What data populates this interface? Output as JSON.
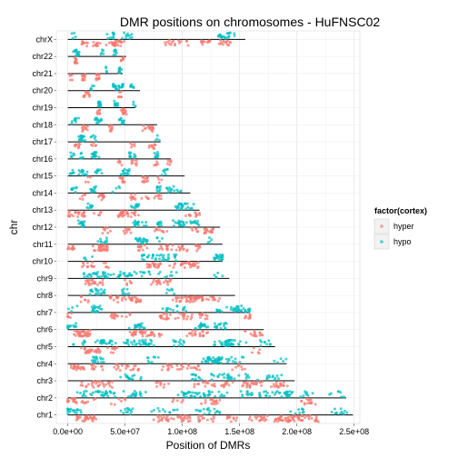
{
  "chart_data": {
    "type": "scatter",
    "title": "DMR positions on chromosomes - HuFNSC02",
    "xlabel": "Position of DMRs",
    "ylabel": "chr",
    "xlim": [
      -10000000.0,
      255000000.0
    ],
    "x_ticks": [
      0,
      50000000,
      100000000,
      150000000,
      200000000,
      250000000
    ],
    "x_tick_labels": [
      "0.0e+00",
      "5.0e+07",
      "1.0e+08",
      "1.5e+08",
      "2.0e+08",
      "2.5e+08"
    ],
    "categories": [
      "chr1",
      "chr2",
      "chr3",
      "chr4",
      "chr5",
      "chr6",
      "chr7",
      "chr8",
      "chr9",
      "chr10",
      "chr11",
      "chr12",
      "chr13",
      "chr14",
      "chr15",
      "chr16",
      "chr17",
      "chr18",
      "chr19",
      "chr20",
      "chr21",
      "chr22",
      "chrX"
    ],
    "chromosome_lengths": [
      249000000,
      243000000,
      198000000,
      191000000,
      181000000,
      171000000,
      159000000,
      146000000,
      141000000,
      135000000,
      135000000,
      133000000,
      115000000,
      107000000,
      102000000,
      90000000,
      81000000,
      78000000,
      59000000,
      63000000,
      48000000,
      51000000,
      155000000
    ],
    "legend": {
      "title": "factor(cortex)",
      "position": "right",
      "entries": [
        "hyper",
        "hypo"
      ]
    },
    "series": [
      {
        "name": "hyper",
        "color": "#F8766D"
      },
      {
        "name": "hypo",
        "color": "#00BFC4"
      }
    ],
    "grid": true
  }
}
